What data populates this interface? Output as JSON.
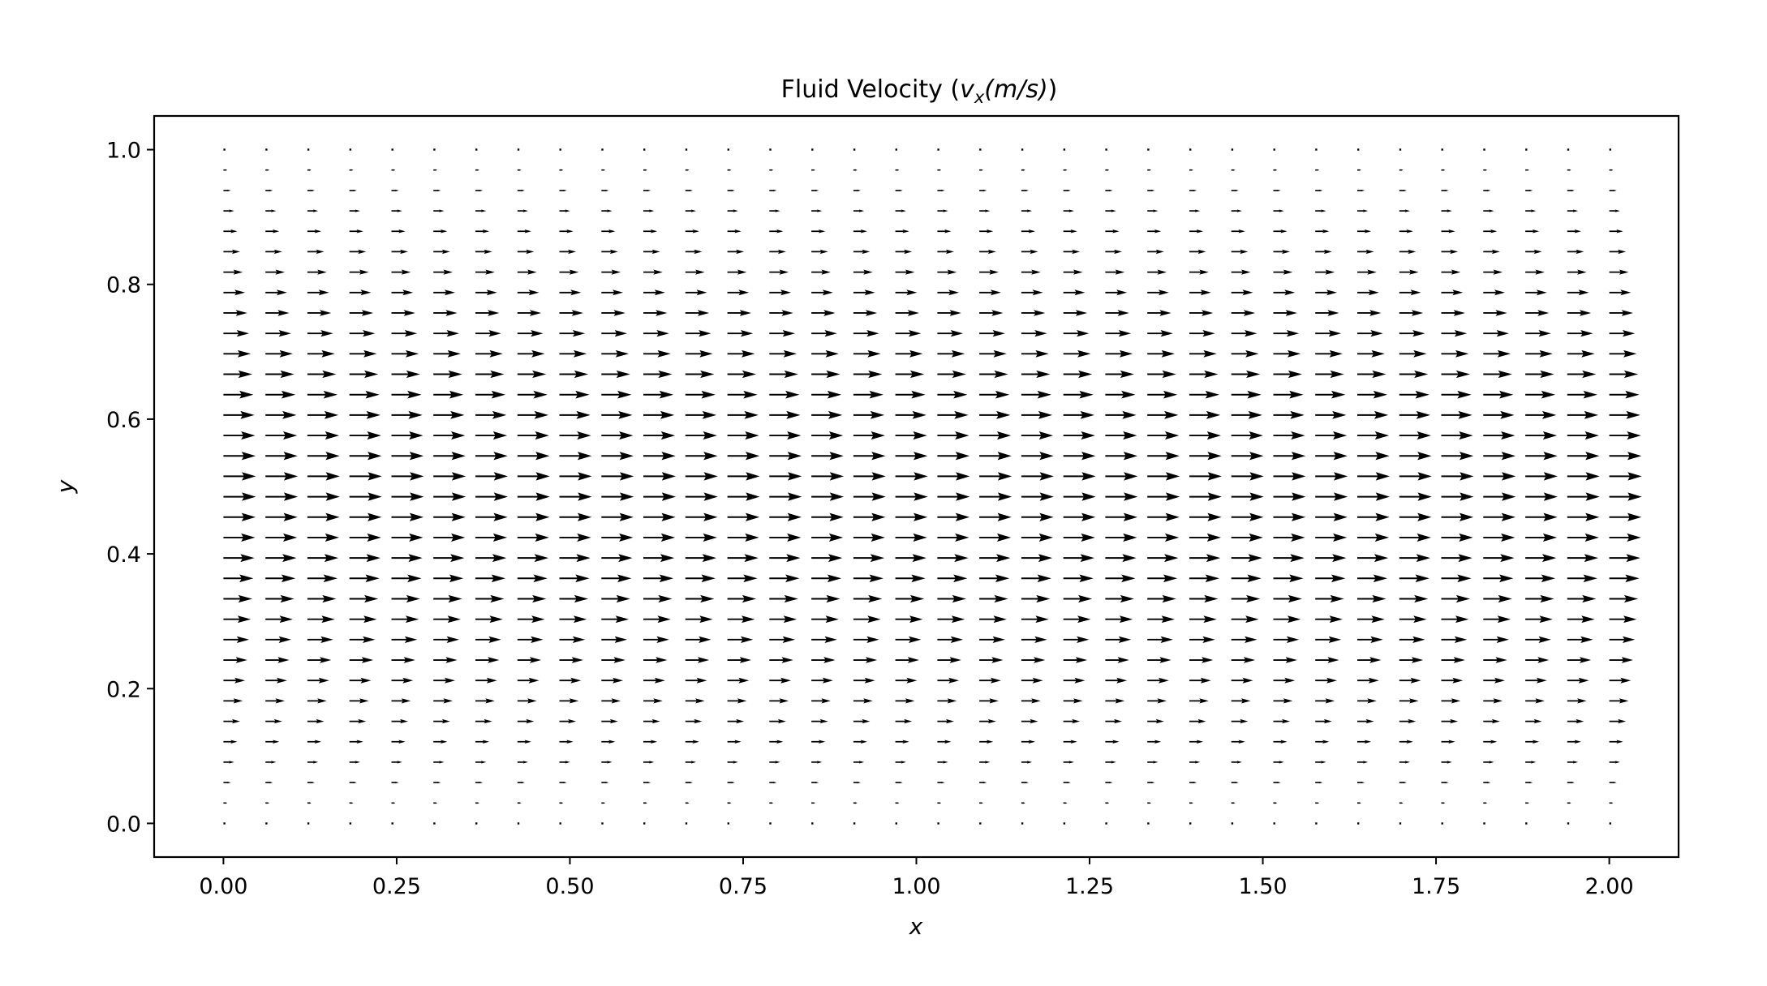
{
  "chart_data": {
    "type": "quiver",
    "title": "Fluid Velocity (v_x(m/s))",
    "title_parts": {
      "prefix": "Fluid Velocity (",
      "var": "v",
      "sub": "x",
      "unit": "(m/s)",
      "suffix": ")"
    },
    "xlabel": "x",
    "ylabel": "y",
    "xlim": [
      -0.1,
      2.1
    ],
    "ylim": [
      -0.05,
      1.05
    ],
    "xticks": [
      0.0,
      0.25,
      0.5,
      0.75,
      1.0,
      1.25,
      1.5,
      1.75,
      2.0
    ],
    "xtick_labels": [
      "0.00",
      "0.25",
      "0.50",
      "0.75",
      "1.00",
      "1.25",
      "1.50",
      "1.75",
      "2.00"
    ],
    "yticks": [
      0.0,
      0.2,
      0.4,
      0.6,
      0.8,
      1.0
    ],
    "ytick_labels": [
      "0.0",
      "0.2",
      "0.4",
      "0.6",
      "0.8",
      "1.0"
    ],
    "grid": false,
    "field": {
      "x_start": 0.0,
      "x_end": 2.0,
      "nx": 34,
      "y_start": 0.0,
      "y_end": 1.0,
      "ny": 34,
      "profile": "parabolic",
      "vx_max": 1.0,
      "vy": 0.0
    },
    "colors": {
      "arrow": "#000000",
      "axes": "#000000",
      "background": "#ffffff"
    }
  }
}
